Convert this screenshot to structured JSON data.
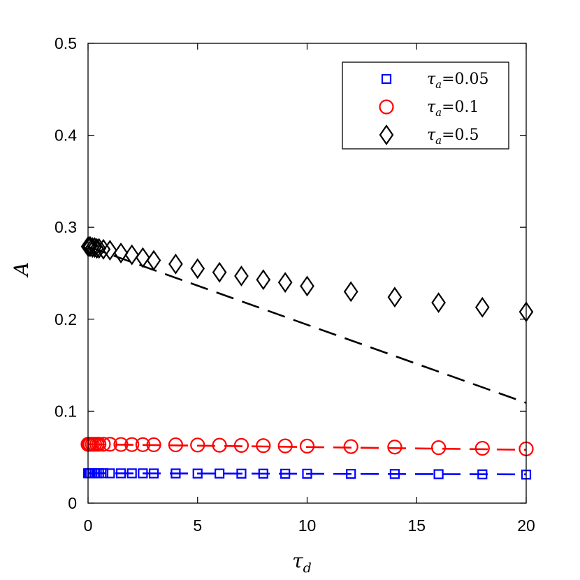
{
  "chart_data": {
    "type": "scatter",
    "title": "",
    "xlabel": "τ",
    "xlabel_sub": "d",
    "ylabel": "A",
    "xlim": [
      0,
      20
    ],
    "ylim": [
      0,
      0.5
    ],
    "x_ticks": [
      0,
      5,
      10,
      15,
      20
    ],
    "x_tick_labels": [
      "0",
      "5",
      "10",
      "15",
      "20"
    ],
    "y_ticks": [
      0,
      0.1,
      0.2,
      0.3,
      0.4,
      0.5
    ],
    "y_tick_labels": [
      "0",
      "0.1",
      "0.2",
      "0.3",
      "0.4",
      "0.5"
    ],
    "grid": false,
    "legend_position": "top-right",
    "series": [
      {
        "name": "τa=0.05",
        "legend_var": "τ",
        "legend_sub": "a",
        "legend_value": "=0.05",
        "marker": "square",
        "color": "#0000ff",
        "x": [
          0,
          0.05,
          0.1,
          0.2,
          0.3,
          0.4,
          0.5,
          0.7,
          1,
          1.5,
          2,
          2.5,
          3,
          4,
          5,
          6,
          7,
          8,
          9,
          10,
          12,
          14,
          16,
          18,
          20
        ],
        "y": [
          0.0325,
          0.0325,
          0.0325,
          0.0325,
          0.0325,
          0.0325,
          0.0325,
          0.0325,
          0.0324,
          0.0324,
          0.0324,
          0.0324,
          0.0323,
          0.0323,
          0.0322,
          0.0322,
          0.0321,
          0.0321,
          0.032,
          0.032,
          0.0318,
          0.0317,
          0.0315,
          0.0313,
          0.031
        ],
        "fit_x": [
          0,
          20
        ],
        "fit_y": [
          0.0325,
          0.0313
        ]
      },
      {
        "name": "τa=0.1",
        "legend_var": "τ",
        "legend_sub": "a",
        "legend_value": "=0.1",
        "marker": "circle",
        "color": "#ff0000",
        "x": [
          0,
          0.05,
          0.1,
          0.2,
          0.3,
          0.4,
          0.5,
          0.7,
          1,
          1.5,
          2,
          2.5,
          3,
          4,
          5,
          6,
          7,
          8,
          9,
          10,
          12,
          14,
          16,
          18,
          20
        ],
        "y": [
          0.064,
          0.064,
          0.064,
          0.064,
          0.064,
          0.064,
          0.064,
          0.064,
          0.064,
          0.0638,
          0.0637,
          0.0636,
          0.0635,
          0.0634,
          0.0632,
          0.063,
          0.0628,
          0.0625,
          0.0622,
          0.062,
          0.0615,
          0.061,
          0.0603,
          0.0596,
          0.059
        ],
        "fit_x": [
          0,
          20
        ],
        "fit_y": [
          0.064,
          0.058
        ]
      },
      {
        "name": "τa=0.5",
        "legend_var": "τ",
        "legend_sub": "a",
        "legend_value": "=0.5",
        "marker": "diamond",
        "color": "#000000",
        "x": [
          0,
          0.05,
          0.1,
          0.2,
          0.3,
          0.4,
          0.5,
          0.7,
          1,
          1.5,
          2,
          2.5,
          3,
          4,
          5,
          6,
          7,
          8,
          9,
          10,
          12,
          14,
          16,
          18,
          20
        ],
        "y": [
          0.279,
          0.279,
          0.279,
          0.278,
          0.278,
          0.277,
          0.277,
          0.276,
          0.275,
          0.272,
          0.27,
          0.267,
          0.264,
          0.26,
          0.255,
          0.251,
          0.247,
          0.243,
          0.24,
          0.236,
          0.23,
          0.224,
          0.218,
          0.213,
          0.208
        ],
        "fit_x": [
          0,
          20
        ],
        "fit_y": [
          0.279,
          0.109
        ]
      }
    ]
  }
}
